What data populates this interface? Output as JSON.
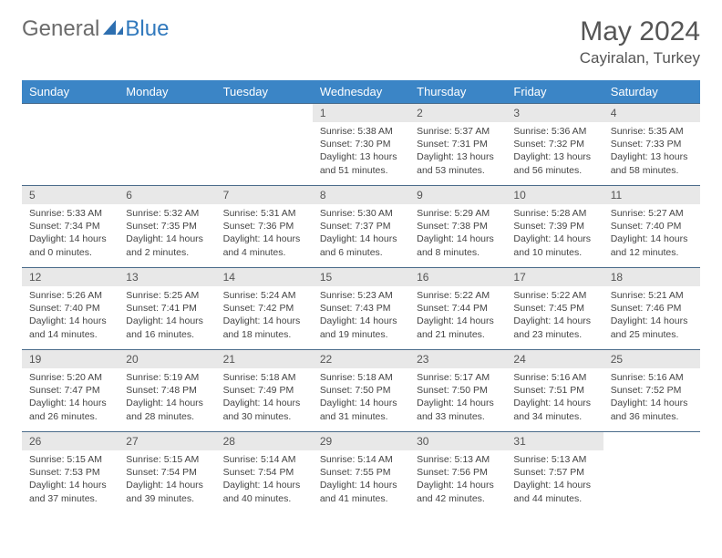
{
  "brand": {
    "part1": "General",
    "part2": "Blue"
  },
  "title": "May 2024",
  "location": "Cayiralan, Turkey",
  "colors": {
    "header_bg": "#3b85c6",
    "header_text": "#ffffff",
    "daynum_bg": "#e8e8e8",
    "border": "#4a6b8a",
    "brand_gray": "#6b6b6b",
    "brand_blue": "#3179bd"
  },
  "day_headers": [
    "Sunday",
    "Monday",
    "Tuesday",
    "Wednesday",
    "Thursday",
    "Friday",
    "Saturday"
  ],
  "weeks": [
    [
      {
        "n": "",
        "sr": "",
        "ss": "",
        "dl": ""
      },
      {
        "n": "",
        "sr": "",
        "ss": "",
        "dl": ""
      },
      {
        "n": "",
        "sr": "",
        "ss": "",
        "dl": ""
      },
      {
        "n": "1",
        "sr": "Sunrise: 5:38 AM",
        "ss": "Sunset: 7:30 PM",
        "dl": "Daylight: 13 hours and 51 minutes."
      },
      {
        "n": "2",
        "sr": "Sunrise: 5:37 AM",
        "ss": "Sunset: 7:31 PM",
        "dl": "Daylight: 13 hours and 53 minutes."
      },
      {
        "n": "3",
        "sr": "Sunrise: 5:36 AM",
        "ss": "Sunset: 7:32 PM",
        "dl": "Daylight: 13 hours and 56 minutes."
      },
      {
        "n": "4",
        "sr": "Sunrise: 5:35 AM",
        "ss": "Sunset: 7:33 PM",
        "dl": "Daylight: 13 hours and 58 minutes."
      }
    ],
    [
      {
        "n": "5",
        "sr": "Sunrise: 5:33 AM",
        "ss": "Sunset: 7:34 PM",
        "dl": "Daylight: 14 hours and 0 minutes."
      },
      {
        "n": "6",
        "sr": "Sunrise: 5:32 AM",
        "ss": "Sunset: 7:35 PM",
        "dl": "Daylight: 14 hours and 2 minutes."
      },
      {
        "n": "7",
        "sr": "Sunrise: 5:31 AM",
        "ss": "Sunset: 7:36 PM",
        "dl": "Daylight: 14 hours and 4 minutes."
      },
      {
        "n": "8",
        "sr": "Sunrise: 5:30 AM",
        "ss": "Sunset: 7:37 PM",
        "dl": "Daylight: 14 hours and 6 minutes."
      },
      {
        "n": "9",
        "sr": "Sunrise: 5:29 AM",
        "ss": "Sunset: 7:38 PM",
        "dl": "Daylight: 14 hours and 8 minutes."
      },
      {
        "n": "10",
        "sr": "Sunrise: 5:28 AM",
        "ss": "Sunset: 7:39 PM",
        "dl": "Daylight: 14 hours and 10 minutes."
      },
      {
        "n": "11",
        "sr": "Sunrise: 5:27 AM",
        "ss": "Sunset: 7:40 PM",
        "dl": "Daylight: 14 hours and 12 minutes."
      }
    ],
    [
      {
        "n": "12",
        "sr": "Sunrise: 5:26 AM",
        "ss": "Sunset: 7:40 PM",
        "dl": "Daylight: 14 hours and 14 minutes."
      },
      {
        "n": "13",
        "sr": "Sunrise: 5:25 AM",
        "ss": "Sunset: 7:41 PM",
        "dl": "Daylight: 14 hours and 16 minutes."
      },
      {
        "n": "14",
        "sr": "Sunrise: 5:24 AM",
        "ss": "Sunset: 7:42 PM",
        "dl": "Daylight: 14 hours and 18 minutes."
      },
      {
        "n": "15",
        "sr": "Sunrise: 5:23 AM",
        "ss": "Sunset: 7:43 PM",
        "dl": "Daylight: 14 hours and 19 minutes."
      },
      {
        "n": "16",
        "sr": "Sunrise: 5:22 AM",
        "ss": "Sunset: 7:44 PM",
        "dl": "Daylight: 14 hours and 21 minutes."
      },
      {
        "n": "17",
        "sr": "Sunrise: 5:22 AM",
        "ss": "Sunset: 7:45 PM",
        "dl": "Daylight: 14 hours and 23 minutes."
      },
      {
        "n": "18",
        "sr": "Sunrise: 5:21 AM",
        "ss": "Sunset: 7:46 PM",
        "dl": "Daylight: 14 hours and 25 minutes."
      }
    ],
    [
      {
        "n": "19",
        "sr": "Sunrise: 5:20 AM",
        "ss": "Sunset: 7:47 PM",
        "dl": "Daylight: 14 hours and 26 minutes."
      },
      {
        "n": "20",
        "sr": "Sunrise: 5:19 AM",
        "ss": "Sunset: 7:48 PM",
        "dl": "Daylight: 14 hours and 28 minutes."
      },
      {
        "n": "21",
        "sr": "Sunrise: 5:18 AM",
        "ss": "Sunset: 7:49 PM",
        "dl": "Daylight: 14 hours and 30 minutes."
      },
      {
        "n": "22",
        "sr": "Sunrise: 5:18 AM",
        "ss": "Sunset: 7:50 PM",
        "dl": "Daylight: 14 hours and 31 minutes."
      },
      {
        "n": "23",
        "sr": "Sunrise: 5:17 AM",
        "ss": "Sunset: 7:50 PM",
        "dl": "Daylight: 14 hours and 33 minutes."
      },
      {
        "n": "24",
        "sr": "Sunrise: 5:16 AM",
        "ss": "Sunset: 7:51 PM",
        "dl": "Daylight: 14 hours and 34 minutes."
      },
      {
        "n": "25",
        "sr": "Sunrise: 5:16 AM",
        "ss": "Sunset: 7:52 PM",
        "dl": "Daylight: 14 hours and 36 minutes."
      }
    ],
    [
      {
        "n": "26",
        "sr": "Sunrise: 5:15 AM",
        "ss": "Sunset: 7:53 PM",
        "dl": "Daylight: 14 hours and 37 minutes."
      },
      {
        "n": "27",
        "sr": "Sunrise: 5:15 AM",
        "ss": "Sunset: 7:54 PM",
        "dl": "Daylight: 14 hours and 39 minutes."
      },
      {
        "n": "28",
        "sr": "Sunrise: 5:14 AM",
        "ss": "Sunset: 7:54 PM",
        "dl": "Daylight: 14 hours and 40 minutes."
      },
      {
        "n": "29",
        "sr": "Sunrise: 5:14 AM",
        "ss": "Sunset: 7:55 PM",
        "dl": "Daylight: 14 hours and 41 minutes."
      },
      {
        "n": "30",
        "sr": "Sunrise: 5:13 AM",
        "ss": "Sunset: 7:56 PM",
        "dl": "Daylight: 14 hours and 42 minutes."
      },
      {
        "n": "31",
        "sr": "Sunrise: 5:13 AM",
        "ss": "Sunset: 7:57 PM",
        "dl": "Daylight: 14 hours and 44 minutes."
      },
      {
        "n": "",
        "sr": "",
        "ss": "",
        "dl": ""
      }
    ]
  ]
}
